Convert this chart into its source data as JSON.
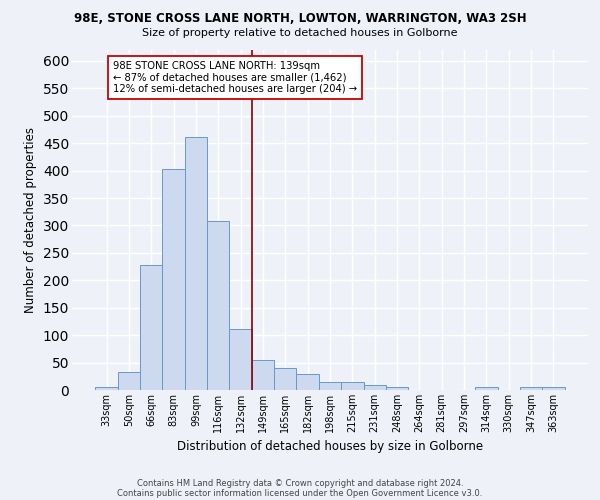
{
  "title1": "98E, STONE CROSS LANE NORTH, LOWTON, WARRINGTON, WA3 2SH",
  "title2": "Size of property relative to detached houses in Golborne",
  "xlabel": "Distribution of detached houses by size in Golborne",
  "ylabel": "Number of detached properties",
  "categories": [
    "33sqm",
    "50sqm",
    "66sqm",
    "83sqm",
    "99sqm",
    "116sqm",
    "132sqm",
    "149sqm",
    "165sqm",
    "182sqm",
    "198sqm",
    "215sqm",
    "231sqm",
    "248sqm",
    "264sqm",
    "281sqm",
    "297sqm",
    "314sqm",
    "330sqm",
    "347sqm",
    "363sqm"
  ],
  "values": [
    5,
    32,
    228,
    403,
    462,
    308,
    111,
    54,
    40,
    30,
    15,
    15,
    10,
    5,
    0,
    0,
    0,
    5,
    0,
    5,
    5
  ],
  "bar_color": "#ccd9ee",
  "bar_edge_color": "#6699cc",
  "vline_x": 6.5,
  "vline_color": "#8b0000",
  "annotation_line1": "98E STONE CROSS LANE NORTH: 139sqm",
  "annotation_line2": "← 87% of detached houses are smaller (1,462)",
  "annotation_line3": "12% of semi-detached houses are larger (204) →",
  "annotation_box_color": "#ffffff",
  "annotation_box_edge": "#cc0000",
  "bg_color": "#eef2f8",
  "grid_color": "#ffffff",
  "footer1": "Contains HM Land Registry data © Crown copyright and database right 2024.",
  "footer2": "Contains public sector information licensed under the Open Government Licence v3.0.",
  "ylim": [
    0,
    620
  ],
  "yticks": [
    0,
    50,
    100,
    150,
    200,
    250,
    300,
    350,
    400,
    450,
    500,
    550,
    600
  ]
}
